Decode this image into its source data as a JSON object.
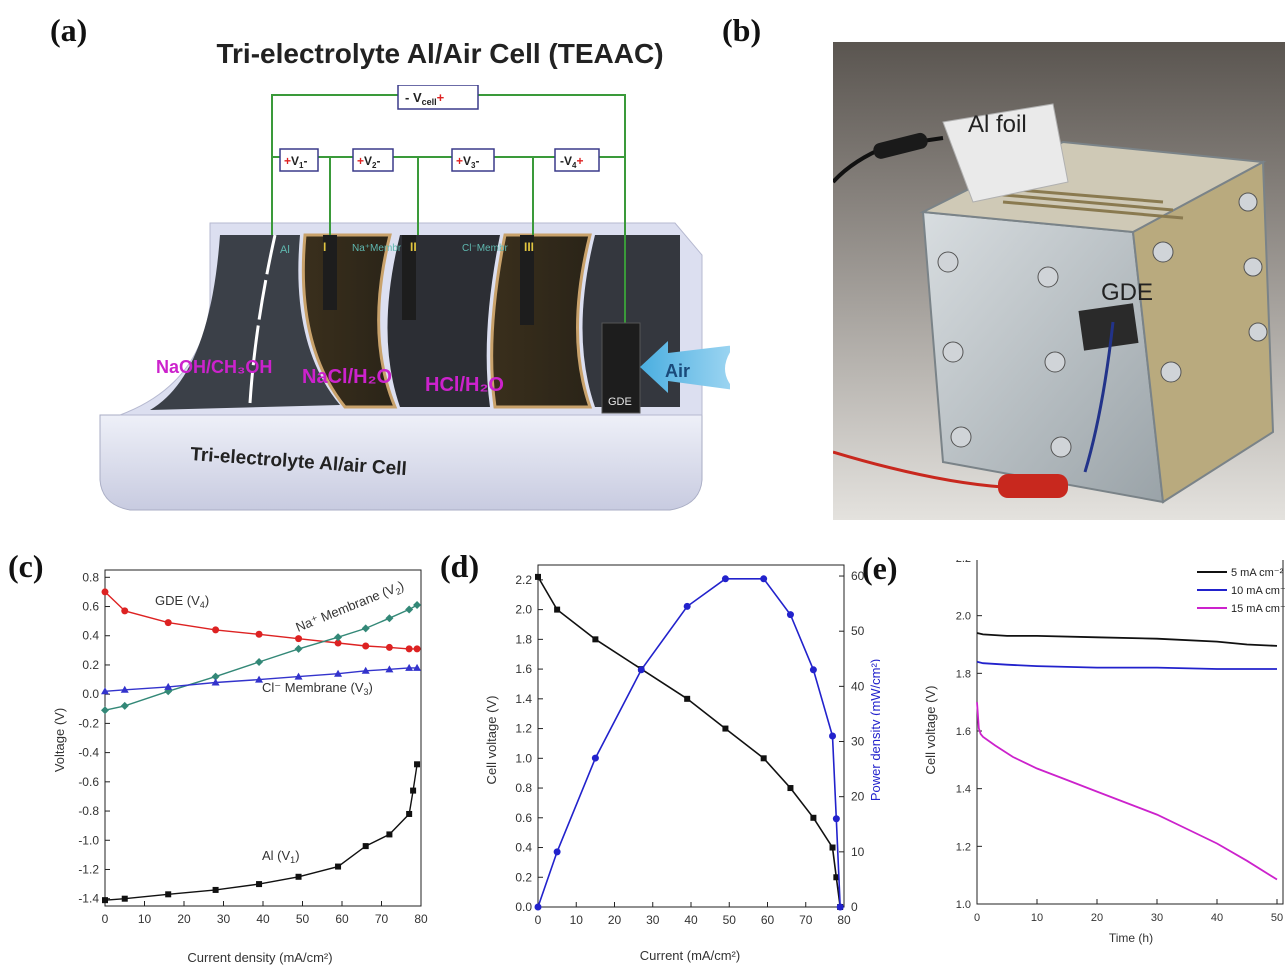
{
  "panels": {
    "a": "(a)",
    "b": "(b)",
    "c": "(c)",
    "d": "(d)",
    "e": "(e)"
  },
  "diagram": {
    "title": "Tri-electrolyte Al/Air Cell (TEAAC)",
    "vcell": "- V",
    "vcell_sub": "cell",
    "vcell_sign": "+",
    "v_boxes": [
      {
        "pre": "+",
        "label": "V",
        "sub": "1",
        "post": "-"
      },
      {
        "pre": "+",
        "label": "V",
        "sub": "2",
        "post": "-"
      },
      {
        "pre": "+",
        "label": "V",
        "sub": "3",
        "post": "-"
      },
      {
        "pre": "-",
        "label": "V",
        "sub": "4",
        "post": "+"
      }
    ],
    "electrode_labels": [
      "Al",
      "I",
      "Na⁺Membr",
      "II",
      "Cl⁻Membr",
      "III"
    ],
    "electrolytes": [
      "NaOH/CH₃OH",
      "NaCl/H₂O",
      "HCl/H₂O"
    ],
    "gde": "GDE",
    "air": "Air",
    "base_label": "Tri-electrolyte Al/air Cell",
    "colors": {
      "wire": "#3a9a3a",
      "electrolyte_text": "#cc22cc",
      "box_border": "#3a3a8a"
    }
  },
  "photo": {
    "labels": [
      "Al foil",
      "GDE"
    ]
  },
  "chart_data": [
    {
      "type": "line",
      "xlabel": "Current density (mA/cm²)",
      "ylabel": "Voltage (V)",
      "xlim": [
        0,
        80
      ],
      "ylim": [
        -1.45,
        0.85
      ],
      "xticks": [
        0,
        10,
        20,
        30,
        40,
        50,
        60,
        70,
        80
      ],
      "yticks": [
        -1.4,
        -1.2,
        -1.0,
        -0.8,
        -0.6,
        -0.4,
        -0.2,
        0.0,
        0.2,
        0.4,
        0.6,
        0.8
      ],
      "series": [
        {
          "name": "GDE (V4)",
          "color": "#dd2222",
          "marker": "circle",
          "x": [
            0,
            5,
            16,
            28,
            39,
            49,
            59,
            66,
            72,
            77,
            79
          ],
          "y": [
            0.7,
            0.57,
            0.49,
            0.44,
            0.41,
            0.38,
            0.35,
            0.33,
            0.32,
            0.31,
            0.31
          ]
        },
        {
          "name": "Na⁺ Membrane (V2)",
          "color": "#338877",
          "marker": "diamond",
          "x": [
            0,
            5,
            16,
            28,
            39,
            49,
            59,
            66,
            72,
            77,
            79
          ],
          "y": [
            -0.11,
            -0.08,
            0.02,
            0.12,
            0.22,
            0.31,
            0.39,
            0.45,
            0.52,
            0.58,
            0.61
          ]
        },
        {
          "name": "Cl⁻ Membrane (V3)",
          "color": "#3333cc",
          "marker": "triangle",
          "x": [
            0,
            5,
            16,
            28,
            39,
            49,
            59,
            66,
            72,
            77,
            79
          ],
          "y": [
            0.02,
            0.03,
            0.05,
            0.08,
            0.1,
            0.12,
            0.14,
            0.16,
            0.17,
            0.18,
            0.18
          ]
        },
        {
          "name": "Al (V1)",
          "color": "#111111",
          "marker": "square",
          "x": [
            0,
            5,
            16,
            28,
            39,
            49,
            59,
            66,
            72,
            77,
            78,
            79
          ],
          "y": [
            -1.41,
            -1.4,
            -1.37,
            -1.34,
            -1.3,
            -1.25,
            -1.18,
            -1.04,
            -0.96,
            -0.82,
            -0.66,
            -0.48
          ]
        }
      ],
      "annotations": [
        {
          "text": "GDE (V",
          "sub": "4",
          "tail": ")"
        },
        {
          "text": "Na⁺ Membrane (V",
          "sub": "2",
          "tail": ")"
        },
        {
          "text": "Cl⁻ Membrane (V",
          "sub": "3",
          "tail": ")"
        },
        {
          "text": "Al (V",
          "sub": "1",
          "tail": ")"
        }
      ]
    },
    {
      "type": "line",
      "xlabel": "Current (mA/cm²)",
      "ylabel": "Cell voltage (V)",
      "y2label": "Power density (mW/cm²)",
      "xlim": [
        0,
        80
      ],
      "ylim": [
        0,
        2.3
      ],
      "y2lim": [
        0,
        62
      ],
      "xticks": [
        0,
        10,
        20,
        30,
        40,
        50,
        60,
        70,
        80
      ],
      "yticks": [
        0.0,
        0.2,
        0.4,
        0.6,
        0.8,
        1.0,
        1.2,
        1.4,
        1.6,
        1.8,
        2.0,
        2.2
      ],
      "y2ticks": [
        0,
        10,
        20,
        30,
        40,
        50,
        60
      ],
      "series": [
        {
          "name": "Cell voltage",
          "axis": "left",
          "color": "#111111",
          "marker": "square",
          "x": [
            0,
            5,
            15,
            27,
            39,
            49,
            59,
            66,
            72,
            77,
            78,
            79
          ],
          "y": [
            2.22,
            2.0,
            1.8,
            1.6,
            1.4,
            1.2,
            1.0,
            0.8,
            0.6,
            0.4,
            0.2,
            0.0
          ]
        },
        {
          "name": "Power density",
          "axis": "right",
          "color": "#2222cc",
          "marker": "circle",
          "x": [
            0,
            5,
            15,
            27,
            39,
            49,
            59,
            66,
            72,
            77,
            78,
            79
          ],
          "y": [
            0,
            10,
            27,
            43,
            54.5,
            59.5,
            59.5,
            53,
            43,
            31,
            16,
            0
          ]
        }
      ]
    },
    {
      "type": "line",
      "xlabel": "Time (h)",
      "ylabel": "Cell voltage (V)",
      "xlim": [
        0,
        51
      ],
      "ylim": [
        1.0,
        2.2
      ],
      "xticks": [
        0,
        10,
        20,
        30,
        40,
        50
      ],
      "yticks": [
        1.0,
        1.2,
        1.4,
        1.6,
        1.8,
        2.0,
        2.2
      ],
      "legend": "top-right",
      "series": [
        {
          "name": "5 mA cm⁻²",
          "color": "#111111",
          "x": [
            0,
            1,
            5,
            10,
            20,
            30,
            40,
            45,
            50
          ],
          "y": [
            1.94,
            1.935,
            1.93,
            1.93,
            1.925,
            1.92,
            1.91,
            1.9,
            1.895
          ]
        },
        {
          "name": "10 mA cm⁻²",
          "color": "#2222cc",
          "x": [
            0,
            1,
            5,
            10,
            20,
            30,
            40,
            50
          ],
          "y": [
            1.84,
            1.835,
            1.83,
            1.825,
            1.82,
            1.82,
            1.815,
            1.815
          ]
        },
        {
          "name": "15 mA cm⁻²",
          "color": "#cc22cc",
          "x": [
            0,
            0.3,
            0.6,
            1,
            3,
            6,
            10,
            15,
            20,
            25,
            30,
            35,
            40,
            45,
            50
          ],
          "y": [
            1.7,
            1.61,
            1.59,
            1.58,
            1.55,
            1.51,
            1.47,
            1.43,
            1.39,
            1.35,
            1.31,
            1.26,
            1.21,
            1.15,
            1.085
          ]
        }
      ]
    }
  ]
}
